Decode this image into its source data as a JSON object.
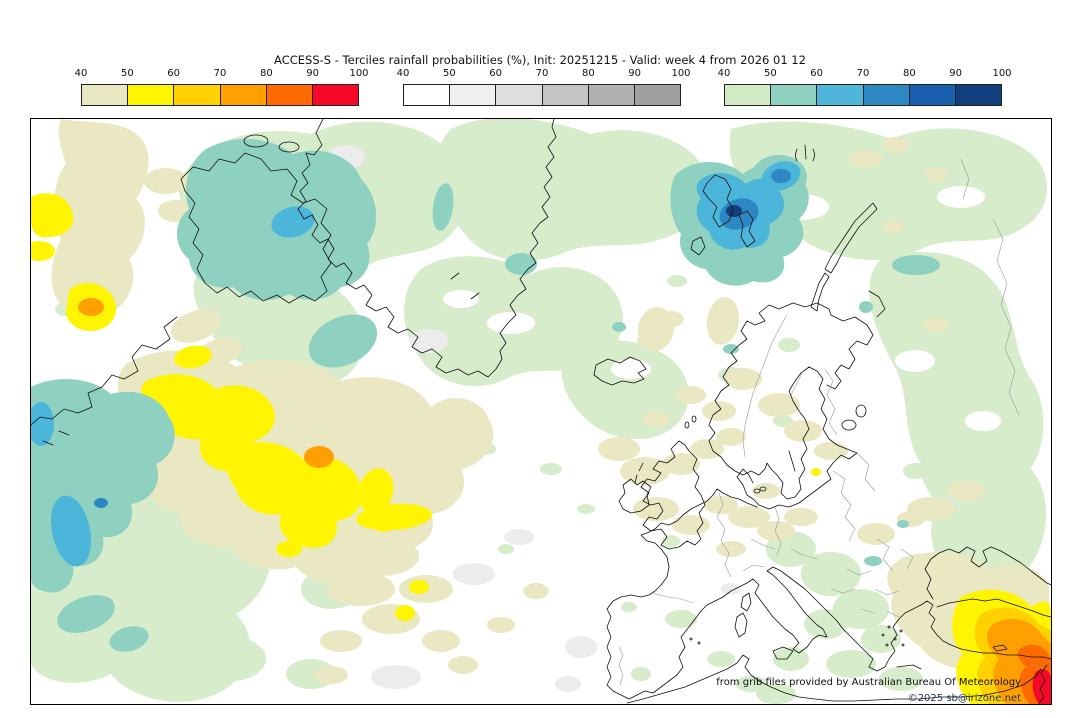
{
  "title": "ACCESS-S - Terciles rainfall probabilities (%), Init: 20251215 - Valid: week 4 from 2026 01 12",
  "legend": {
    "tick_labels": [
      "40",
      "50",
      "60",
      "70",
      "80",
      "90",
      "100"
    ],
    "bars": [
      {
        "name": "below-normal-terciles",
        "colors": [
          "#e9e8c2",
          "#fff500",
          "#ffd100",
          "#ffa000",
          "#ff6a00",
          "#f50828"
        ]
      },
      {
        "name": "near-normal-terciles",
        "colors": [
          "#ffffff",
          "#f0f0f0",
          "#dedede",
          "#c4c4c4",
          "#b0b0b0",
          "#9f9f9f"
        ]
      },
      {
        "name": "above-normal-terciles",
        "colors": [
          "#d2ebc6",
          "#8fd1c1",
          "#4fb6da",
          "#2d87c3",
          "#1a60ae",
          "#123e7e"
        ]
      }
    ]
  },
  "map": {
    "attribution_line1": "from grib files provided by Australian Bureau Of Meteorology",
    "attribution_line2": "©2025 sb@irizone.net",
    "attribution_color": "#111111",
    "copyright_color": "#23344c"
  },
  "palette": {
    "khaki": "#e9e8c2",
    "yellow": "#fff500",
    "gold": "#ffd100",
    "orange": "#ffa000",
    "deep_orange": "#ff6a00",
    "red": "#f50828",
    "light_green": "#d6eccb",
    "teal": "#8ed1c1",
    "sky_blue": "#4cb5da",
    "medium_blue": "#2d87c3",
    "blue": "#1a60ae",
    "navy": "#123e7e",
    "light_gray": "#ececec",
    "coastline": "#111111",
    "border_gray": "#9a9a9a"
  }
}
